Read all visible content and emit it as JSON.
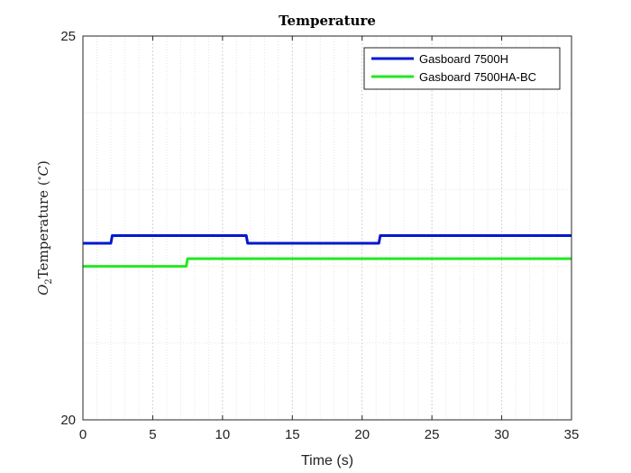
{
  "chart_data": {
    "type": "line",
    "title": "Temperature",
    "xlabel": "Time (s)",
    "ylabel": {
      "symbol": "O",
      "subscript": "2",
      "text": "Temperature (",
      "unit_super": "∘",
      "unit": "C",
      "close": ")"
    },
    "xlim": [
      0,
      35
    ],
    "ylim": [
      20,
      25
    ],
    "xticks": [
      0,
      5,
      10,
      15,
      20,
      25,
      30,
      35
    ],
    "yticks": [
      20,
      25
    ],
    "xtick_labels": [
      "0",
      "5",
      "10",
      "15",
      "20",
      "25",
      "30",
      "35"
    ],
    "ytick_labels": [
      "20",
      "25"
    ],
    "grid": true,
    "minor_grid": true,
    "legend_position": "top-right",
    "series": [
      {
        "name": "Gasboard 7500H",
        "color": "#0018d0",
        "points": [
          [
            0,
            22.3
          ],
          [
            2.0,
            22.3
          ],
          [
            2.1,
            22.4
          ],
          [
            11.7,
            22.4
          ],
          [
            11.8,
            22.3
          ],
          [
            21.2,
            22.3
          ],
          [
            21.3,
            22.4
          ],
          [
            35,
            22.4
          ]
        ]
      },
      {
        "name": "Gasboard 7500HA-BC",
        "color": "#22e822",
        "points": [
          [
            0,
            22.0
          ],
          [
            7.4,
            22.0
          ],
          [
            7.5,
            22.1
          ],
          [
            35,
            22.1
          ]
        ]
      }
    ]
  }
}
